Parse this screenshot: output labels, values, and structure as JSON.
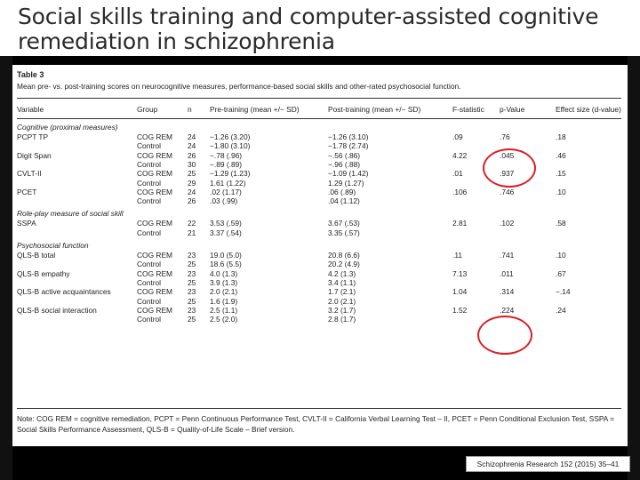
{
  "slide_title": "Social skills training and computer-assisted cognitive remediation in schizophrenia",
  "table": {
    "label": "Table 3",
    "caption": "Mean pre- vs. post-training scores on neurocognitive measures, performance-based social skills and other-rated psychosocial function.",
    "headers": [
      "Variable",
      "Group",
      "n",
      "Pre-training (mean +/− SD)",
      "Post-training (mean +/− SD)",
      "F-statistic",
      "p-Value",
      "Effect size (d-value)"
    ],
    "sections": [
      {
        "title": "Cognitive (proximal measures)",
        "rows": [
          [
            "PCPT TP",
            "COG REM",
            "24",
            "−1.26 (3.20)",
            "−1.26 (3.10)",
            ".09",
            ".76",
            ".18"
          ],
          [
            "",
            "Control",
            "24",
            "−1.80 (3.10)",
            "−1.78 (2.74)",
            "",
            "",
            ""
          ],
          [
            "Digit Span",
            "COG REM",
            "26",
            "−.78 (.96)",
            "−.56 (.86)",
            "4.22",
            ".045",
            ".46"
          ],
          [
            "",
            "Control",
            "30",
            "−.89 (.89)",
            "−.96 (.88)",
            "",
            "",
            ""
          ],
          [
            "CVLT-II",
            "COG REM",
            "25",
            "−1.29 (1.23)",
            "−1.09 (1.42)",
            ".01",
            ".937",
            ".15"
          ],
          [
            "",
            "Control",
            "29",
            "1.61 (1.22)",
            "1.29 (1.27)",
            "",
            "",
            ""
          ],
          [
            "PCET",
            "COG REM",
            "24",
            ".02 (1.17)",
            ".06 (.89)",
            ".106",
            ".746",
            ".10"
          ],
          [
            "",
            "Control",
            "26",
            ".03 (.99)",
            ".04 (1.12)",
            "",
            "",
            ""
          ]
        ]
      },
      {
        "title": "Role-play measure of social skill",
        "rows": [
          [
            "SSPA",
            "COG REM",
            "22",
            "3.53 (.59)",
            "3.67 (.53)",
            "2.81",
            ".102",
            ".58"
          ],
          [
            "",
            "Control",
            "21",
            "3.37 (.54)",
            "3.35 (.57)",
            "",
            "",
            ""
          ]
        ]
      },
      {
        "title": "Psychosocial function",
        "rows": [
          [
            "QLS-B total",
            "COG REM",
            "23",
            "19.0 (5.0)",
            "20.8 (6.6)",
            ".11",
            ".741",
            ".10"
          ],
          [
            "",
            "Control",
            "25",
            "18.6 (5.5)",
            "20.2 (4.9)",
            "",
            "",
            ""
          ],
          [
            "QLS-B empathy",
            "COG REM",
            "23",
            "4.0 (1.3)",
            "4.2 (1.3)",
            "7.13",
            ".011",
            ".67"
          ],
          [
            "",
            "Control",
            "25",
            "3.9 (1.3)",
            "3.4 (1.1)",
            "",
            "",
            ""
          ],
          [
            "QLS-B active acquaintances",
            "COG REM",
            "23",
            "2.0 (2.1)",
            "1.7 (2.1)",
            "1.04",
            ".314",
            "−.14"
          ],
          [
            "",
            "Control",
            "25",
            "1.6 (1.9)",
            "2.0 (2.1)",
            "",
            "",
            ""
          ],
          [
            "QLS-B social interaction",
            "COG REM",
            "23",
            "2.5 (1.1)",
            "3.2 (1.7)",
            "1.52",
            ".224",
            ".24"
          ],
          [
            "",
            "Control",
            "25",
            "2.5 (2.0)",
            "2.8 (1.7)",
            "",
            "",
            ""
          ]
        ]
      }
    ],
    "note": "Note: COG REM = cognitive remediation, PCPT = Penn Continuous Performance Test, CVLT-II = California Verbal Learning Test – II, PCET = Penn Conditional Exclusion Test, SSPA = Social Skills Performance Assessment, QLS-B = Quality-of-Life Scale – Brief version."
  },
  "citation": "Schizophrenia Research 152 (2015) 35–41",
  "colors": {
    "highlight": "#d91f26",
    "background": "#000000"
  }
}
